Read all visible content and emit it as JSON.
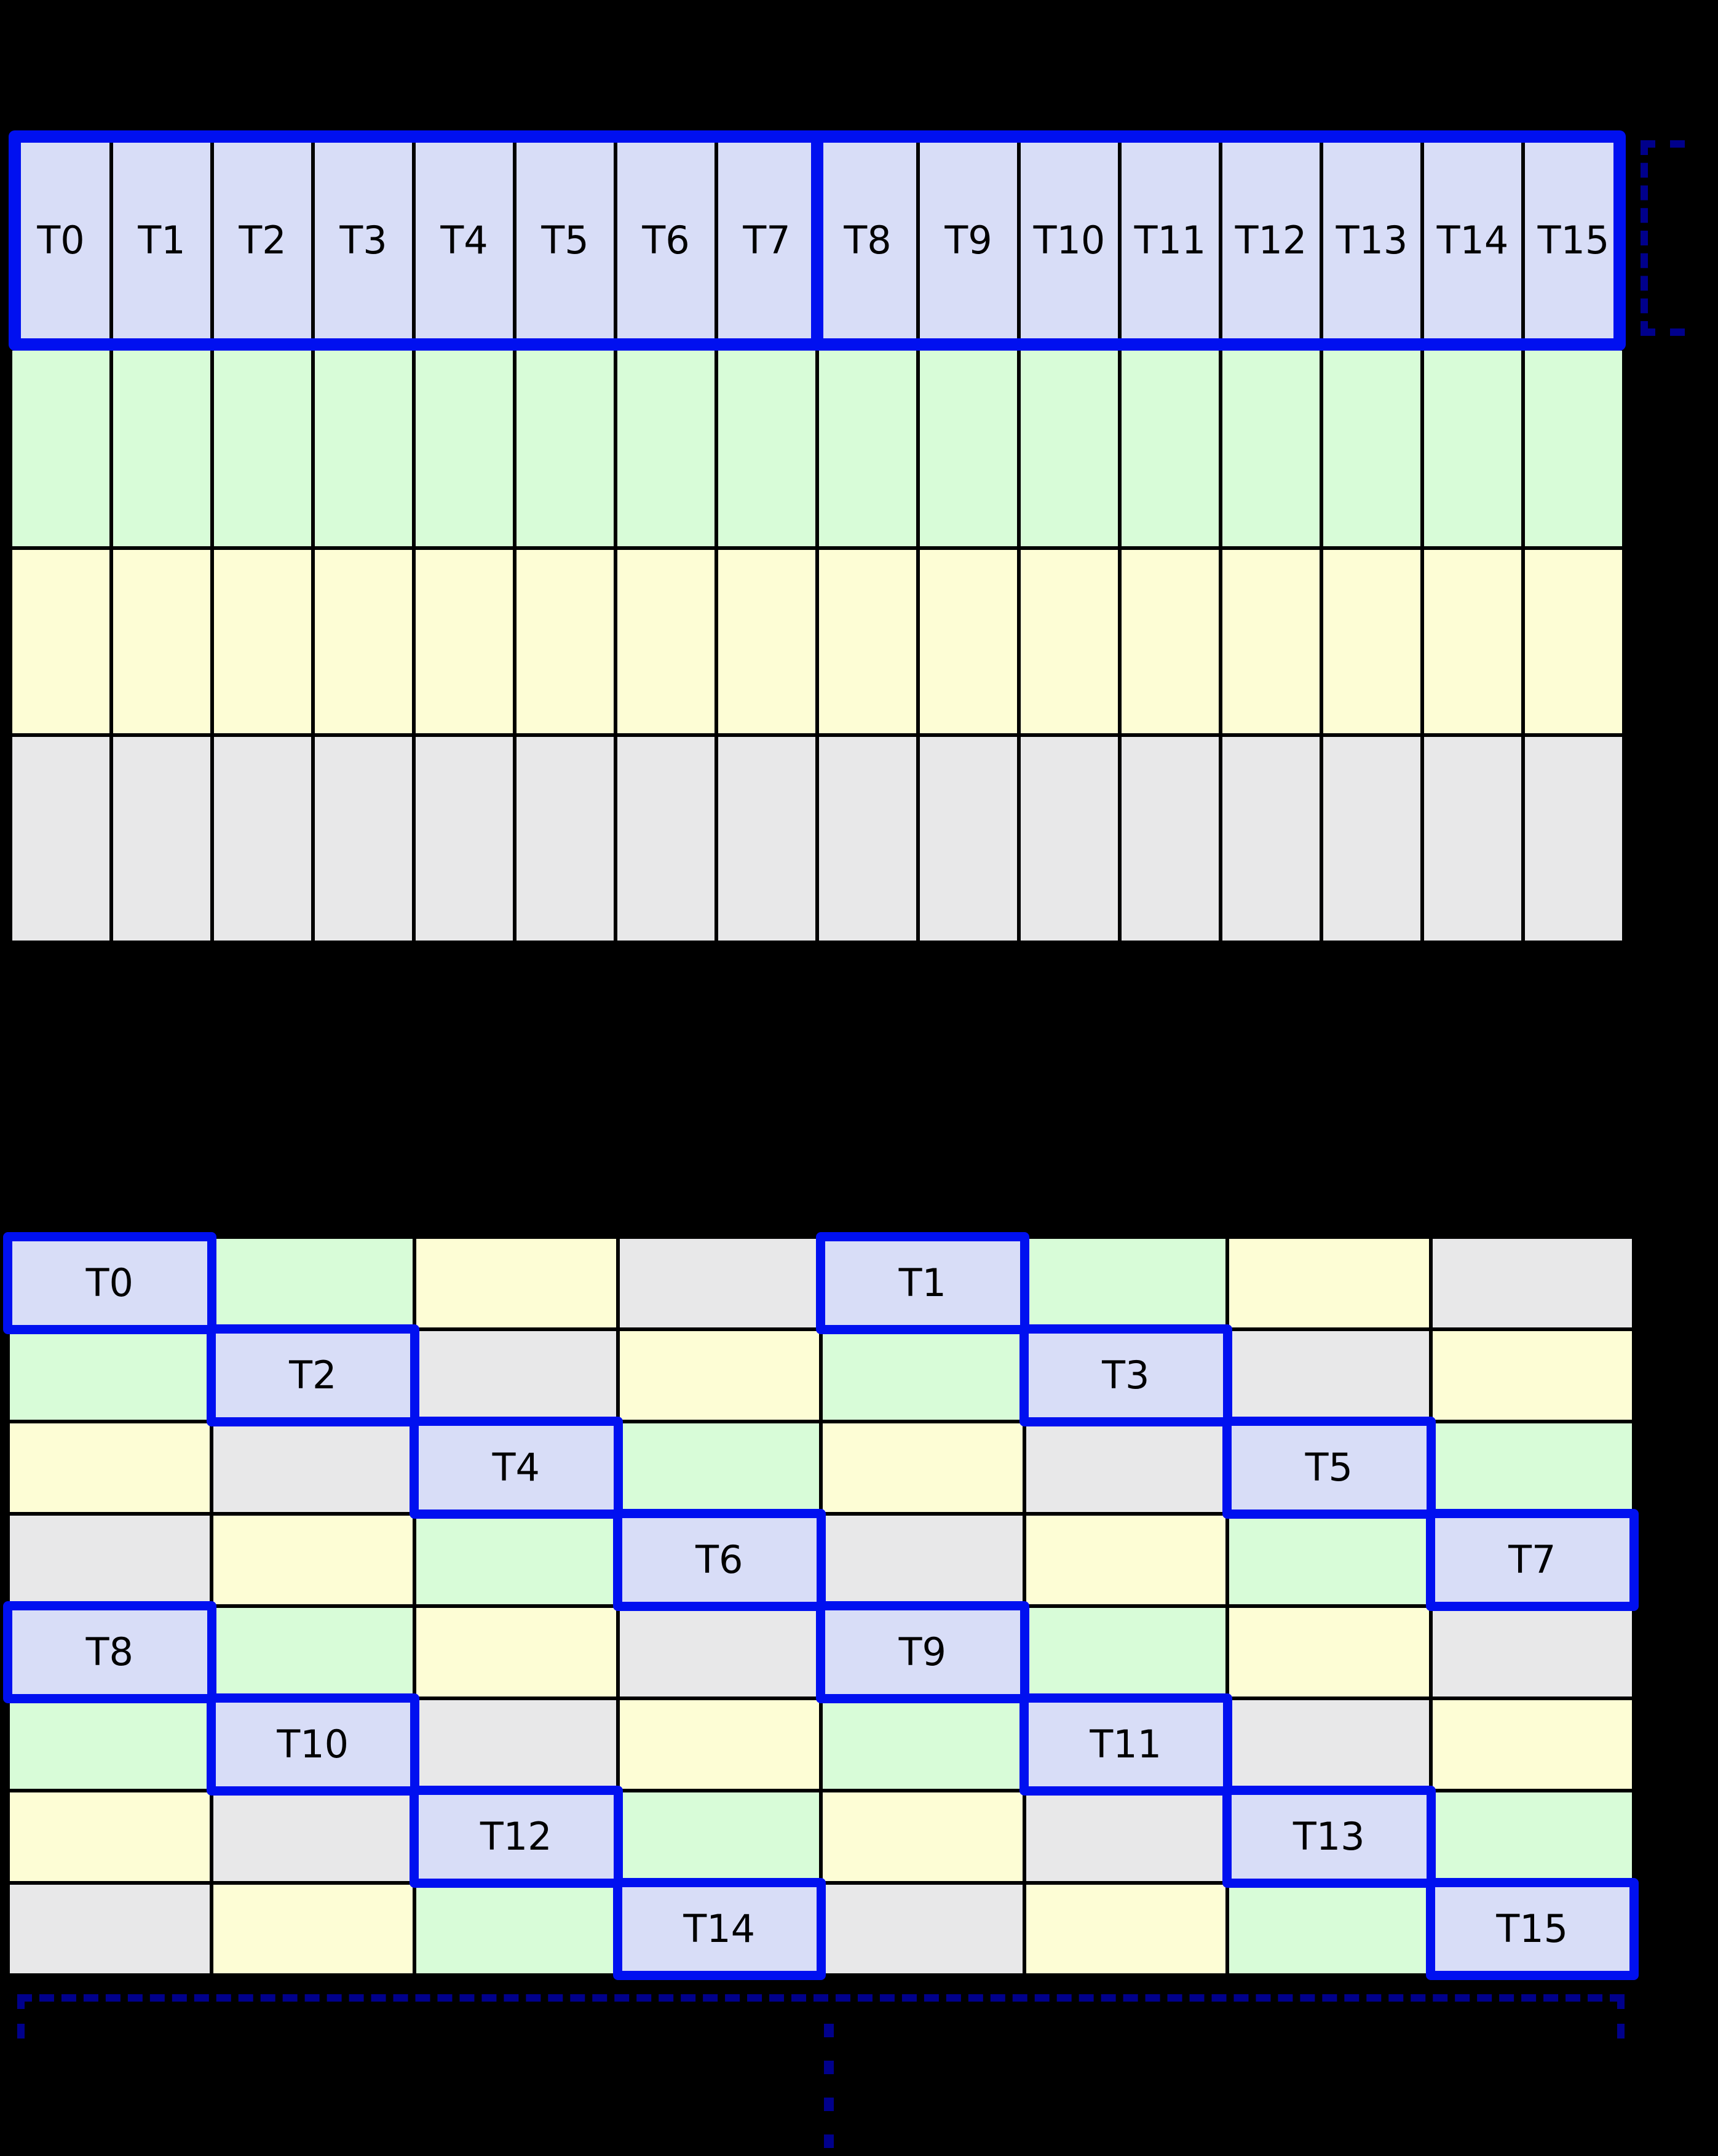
{
  "threads": [
    "T0",
    "T1",
    "T2",
    "T3",
    "T4",
    "T5",
    "T6",
    "T7",
    "T8",
    "T9",
    "T10",
    "T11",
    "T12",
    "T13",
    "T14",
    "T15"
  ],
  "colors": {
    "background": "#000000",
    "grid_line": "#000000",
    "thread": "#d8ddf7",
    "green": "#d8fcd8",
    "yellow": "#fdfdd5",
    "gray": "#e8e8e9",
    "thread_border": "#0010f0",
    "bracket": "#00008b",
    "label": "#000000"
  },
  "grid1": {
    "rows": 4,
    "cols": 16,
    "thread_row": 0,
    "group_size": 8,
    "row_colors": [
      "thread",
      "green",
      "yellow",
      "gray"
    ]
  },
  "grid2": {
    "rows": 8,
    "cols": 8,
    "color_order": [
      "thread",
      "green",
      "yellow",
      "gray"
    ],
    "row_patterns": [
      [
        0,
        1,
        2,
        3,
        0,
        1,
        2,
        3
      ],
      [
        1,
        0,
        3,
        2,
        1,
        0,
        3,
        2
      ],
      [
        2,
        3,
        0,
        1,
        2,
        3,
        0,
        1
      ],
      [
        3,
        2,
        1,
        0,
        3,
        2,
        1,
        0
      ],
      [
        0,
        1,
        2,
        3,
        0,
        1,
        2,
        3
      ],
      [
        1,
        0,
        3,
        2,
        1,
        0,
        3,
        2
      ],
      [
        2,
        3,
        0,
        1,
        2,
        3,
        0,
        1
      ],
      [
        3,
        2,
        1,
        0,
        3,
        2,
        1,
        0
      ]
    ],
    "thread_placements": [
      {
        "thread": 0,
        "row": 0,
        "col": 0
      },
      {
        "thread": 1,
        "row": 0,
        "col": 4
      },
      {
        "thread": 2,
        "row": 1,
        "col": 1
      },
      {
        "thread": 3,
        "row": 1,
        "col": 5
      },
      {
        "thread": 4,
        "row": 2,
        "col": 2
      },
      {
        "thread": 5,
        "row": 2,
        "col": 6
      },
      {
        "thread": 6,
        "row": 3,
        "col": 3
      },
      {
        "thread": 7,
        "row": 3,
        "col": 7
      },
      {
        "thread": 8,
        "row": 4,
        "col": 0
      },
      {
        "thread": 9,
        "row": 4,
        "col": 4
      },
      {
        "thread": 10,
        "row": 5,
        "col": 1
      },
      {
        "thread": 11,
        "row": 5,
        "col": 5
      },
      {
        "thread": 12,
        "row": 6,
        "col": 2
      },
      {
        "thread": 13,
        "row": 6,
        "col": 6
      },
      {
        "thread": 14,
        "row": 7,
        "col": 3
      },
      {
        "thread": 15,
        "row": 7,
        "col": 7
      }
    ]
  },
  "annotations": {
    "ellipsis_dashes": 4
  }
}
